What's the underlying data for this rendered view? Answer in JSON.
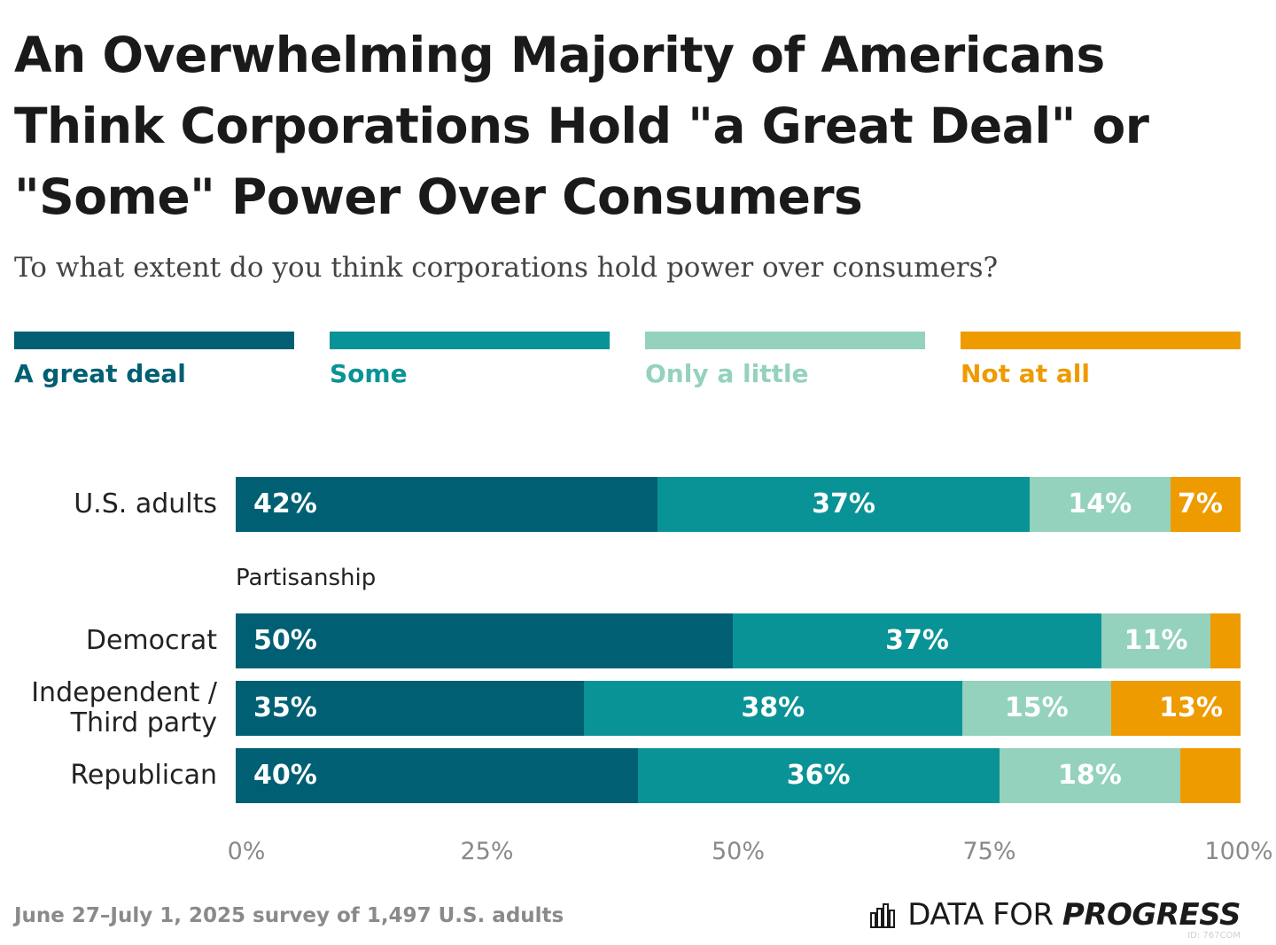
{
  "title": "An Overwhelming Majority of Americans Think Corporations Hold \"a Great Deal\" or \"Some\" Power Over Consumers",
  "subtitle": "To what extent do you think corporations hold power over consumers?",
  "footnote": "June 27–July 1, 2025 survey of 1,497 U.S. adults",
  "brand": {
    "prefix": "DATA FOR ",
    "emphasis": "PROGRESS",
    "icon": "bar-chart-icon"
  },
  "chart_id": "ID: 767COM",
  "colors": {
    "great_deal": "#005F73",
    "some": "#0A9396",
    "little": "#94D2BD",
    "not_at_all": "#EE9B00"
  },
  "chart_data": {
    "type": "bar",
    "orientation": "horizontal",
    "stacked": true,
    "title": "An Overwhelming Majority of Americans Think Corporations Hold \"a Great Deal\" or \"Some\" Power Over Consumers",
    "subtitle": "To what extent do you think corporations hold power over consumers?",
    "categories": [
      "U.S. adults",
      "Democrat",
      "Independent / Third party",
      "Republican"
    ],
    "category_lines": [
      [
        "U.S. adults"
      ],
      [
        "Democrat"
      ],
      [
        "Independent /",
        "Third party"
      ],
      [
        "Republican"
      ]
    ],
    "group_heading": {
      "label": "Partisanship",
      "categories": [
        "Democrat",
        "Independent / Third party",
        "Republican"
      ]
    },
    "series": [
      {
        "name": "A great deal",
        "values": [
          42,
          50,
          35,
          40
        ],
        "labels": [
          "42%",
          "50%",
          "35%",
          "40%"
        ],
        "color": "#005F73",
        "label_align": "left"
      },
      {
        "name": "Some",
        "values": [
          37,
          37,
          38,
          36
        ],
        "labels": [
          "37%",
          "37%",
          "38%",
          "36%"
        ],
        "color": "#0A9396",
        "label_align": "center"
      },
      {
        "name": "Only a little",
        "values": [
          14,
          11,
          15,
          18
        ],
        "labels": [
          "14%",
          "11%",
          "15%",
          "18%"
        ],
        "color": "#94D2BD",
        "label_align": "center"
      },
      {
        "name": "Not at all",
        "values": [
          7,
          3,
          13,
          6
        ],
        "labels": [
          "7%",
          "",
          "13%",
          ""
        ],
        "color": "#EE9B00",
        "label_align": "right"
      }
    ],
    "xlim": [
      0,
      100
    ],
    "xticks": [
      "0%",
      "25%",
      "50%",
      "75%",
      "100%"
    ],
    "xtick_values": [
      0,
      25,
      50,
      75,
      100
    ],
    "legend": "top",
    "grid": false
  }
}
